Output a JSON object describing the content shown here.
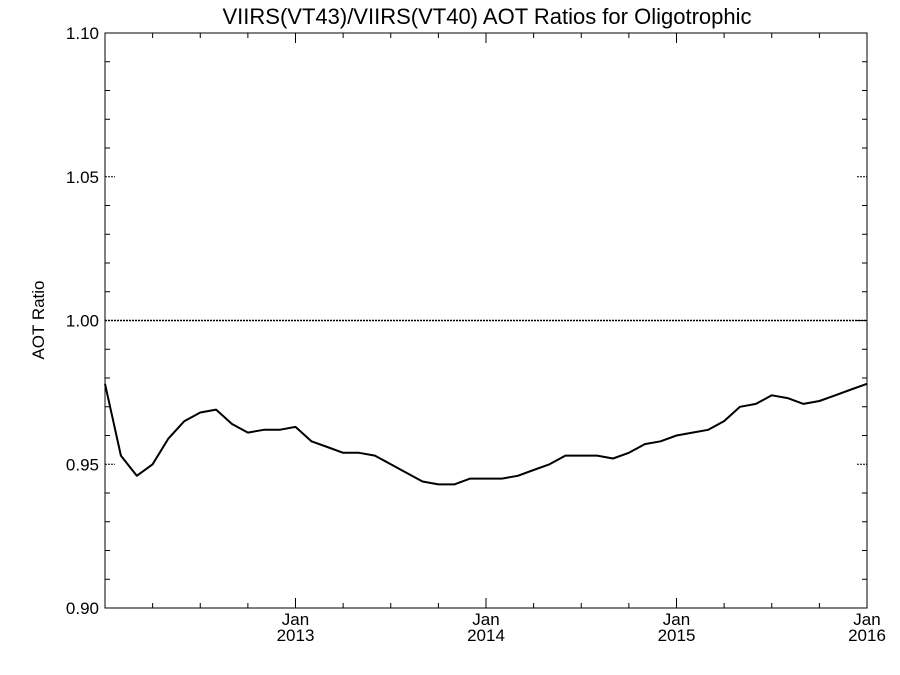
{
  "chart_data": {
    "type": "line",
    "title": "VIIRS(VT43)/VIIRS(VT40)  AOT Ratios for Oligotrophic",
    "xlabel": "",
    "ylabel": "AOT Ratio",
    "ylim": [
      0.9,
      1.1
    ],
    "xlim": [
      "2012-01",
      "2016-01"
    ],
    "y_ticks": [
      "0.90",
      "0.95",
      "1.00",
      "1.05",
      "1.10"
    ],
    "x_ticks": [
      {
        "month": "Jan",
        "year": "2013",
        "date": "2013-01"
      },
      {
        "month": "Jan",
        "year": "2014",
        "date": "2014-01"
      },
      {
        "month": "Jan",
        "year": "2015",
        "date": "2015-01"
      },
      {
        "month": "Jan",
        "year": "2016",
        "date": "2016-01"
      }
    ],
    "reference_line": {
      "y": 1.0,
      "style": "dotted"
    },
    "grid": false,
    "series": [
      {
        "x": [
          "2012-01",
          "2012-02",
          "2012-03",
          "2012-04",
          "2012-05",
          "2012-06",
          "2012-07",
          "2012-08",
          "2012-09",
          "2012-10",
          "2012-11",
          "2012-12",
          "2013-01",
          "2013-02",
          "2013-03",
          "2013-04",
          "2013-05",
          "2013-06",
          "2013-07",
          "2013-08",
          "2013-09",
          "2013-10",
          "2013-11",
          "2013-12",
          "2014-01",
          "2014-02",
          "2014-03",
          "2014-04",
          "2014-05",
          "2014-06",
          "2014-07",
          "2014-08",
          "2014-09",
          "2014-10",
          "2014-11",
          "2014-12",
          "2015-01",
          "2015-02",
          "2015-03",
          "2015-04",
          "2015-05",
          "2015-06",
          "2015-07",
          "2015-08",
          "2015-09",
          "2015-10",
          "2015-11",
          "2015-12",
          "2016-01"
        ],
        "values": [
          0.978,
          0.953,
          0.946,
          0.95,
          0.959,
          0.965,
          0.968,
          0.969,
          0.964,
          0.961,
          0.962,
          0.962,
          0.963,
          0.958,
          0.956,
          0.954,
          0.954,
          0.953,
          0.95,
          0.947,
          0.944,
          0.943,
          0.943,
          0.945,
          0.945,
          0.945,
          0.946,
          0.948,
          0.95,
          0.953,
          0.953,
          0.953,
          0.952,
          0.954,
          0.957,
          0.958,
          0.96,
          0.961,
          0.962,
          0.965,
          0.97,
          0.971,
          0.974,
          0.973,
          0.971,
          0.972,
          0.974,
          0.976,
          0.978
        ]
      }
    ]
  }
}
